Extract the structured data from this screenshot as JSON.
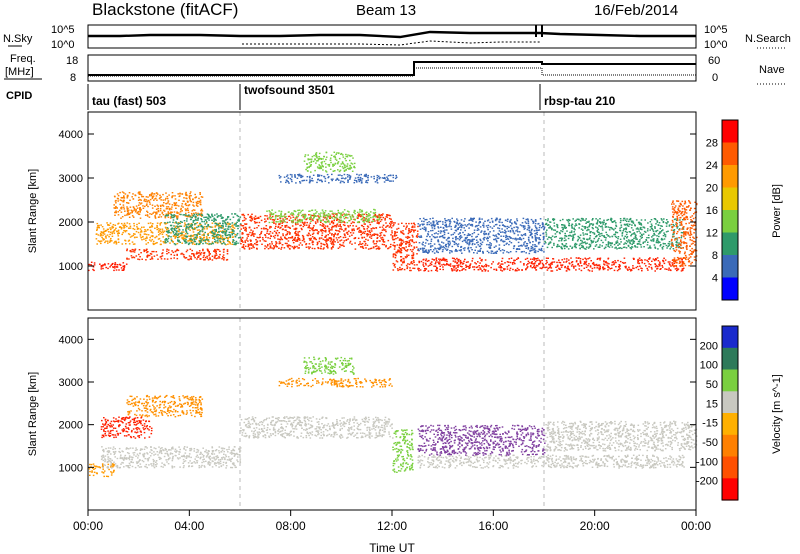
{
  "header": {
    "station": "Blackstone (fitACF)",
    "beam": "Beam 13",
    "date": "16/Feb/2014"
  },
  "left_labels": {
    "nsky": "N.Sky",
    "freq_line1": "Freq.",
    "freq_line2": "[MHz]",
    "cpid": "CPID"
  },
  "right_labels": {
    "nsearch": "N.Search",
    "nave": "Nave"
  },
  "noise_axis": {
    "top": "10^5",
    "bottom": "10^0"
  },
  "freq_axis": {
    "left_ticks": [
      "18",
      "8"
    ],
    "right_ticks": [
      "60",
      "0"
    ]
  },
  "cpid_segments": [
    {
      "label": "tau (fast) 503",
      "start_hour": 0
    },
    {
      "label": "twofsound 3501",
      "start_hour": 6
    },
    {
      "label": "rbsp-tau 210",
      "start_hour": 18
    }
  ],
  "chart_data": [
    {
      "type": "heatmap",
      "panel": "power",
      "ylabel": "Slant Range [km]",
      "xlabel": "Time UT",
      "xlim_hours": [
        0,
        24
      ],
      "x_ticks": [
        "00:00",
        "04:00",
        "08:00",
        "12:00",
        "16:00",
        "20:00",
        "00:00"
      ],
      "ylim": [
        0,
        4500
      ],
      "y_ticks": [
        1000,
        2000,
        3000,
        4000
      ],
      "colorbar": {
        "label": "Power [dB]",
        "ticks": [
          "28",
          "24",
          "20",
          "16",
          "12",
          "8",
          "4"
        ],
        "colors": [
          "#ff0000",
          "#ff5a00",
          "#ff9a00",
          "#e8c800",
          "#7ad040",
          "#2e9a6a",
          "#3a6ab8",
          "#0000ff"
        ]
      },
      "scatter_bands": [
        {
          "t0": 0.0,
          "t1": 1.5,
          "r0": 900,
          "r1": 1100,
          "color": "#ff1a00"
        },
        {
          "t0": 1.5,
          "t1": 5.5,
          "r0": 1150,
          "r1": 1400,
          "color": "#ff3000"
        },
        {
          "t0": 0.3,
          "t1": 5.8,
          "r0": 1500,
          "r1": 2000,
          "color": "#ff9a00"
        },
        {
          "t0": 1.0,
          "t1": 4.5,
          "r0": 2100,
          "r1": 2700,
          "color": "#ff8000"
        },
        {
          "t0": 3.0,
          "t1": 6.0,
          "r0": 1500,
          "r1": 2200,
          "color": "#2e9a6a"
        },
        {
          "t0": 6.0,
          "t1": 12.0,
          "r0": 1400,
          "r1": 2200,
          "color": "#ff3000"
        },
        {
          "t0": 7.0,
          "t1": 11.5,
          "r0": 2000,
          "r1": 2300,
          "color": "#7ad040"
        },
        {
          "t0": 7.5,
          "t1": 12.2,
          "r0": 2900,
          "r1": 3100,
          "color": "#3a6ab8"
        },
        {
          "t0": 8.5,
          "t1": 10.5,
          "r0": 3150,
          "r1": 3600,
          "color": "#7ad040"
        },
        {
          "t0": 12.0,
          "t1": 13.0,
          "r0": 900,
          "r1": 2000,
          "color": "#ff3000"
        },
        {
          "t0": 13.0,
          "t1": 23.5,
          "r0": 900,
          "r1": 1200,
          "color": "#ff2000"
        },
        {
          "t0": 13.0,
          "t1": 18.0,
          "r0": 1300,
          "r1": 2100,
          "color": "#3a6ab8"
        },
        {
          "t0": 18.0,
          "t1": 23.5,
          "r0": 1400,
          "r1": 2100,
          "color": "#2e9a6a"
        },
        {
          "t0": 23.0,
          "t1": 24.0,
          "r0": 1000,
          "r1": 2500,
          "color": "#ff5a00"
        }
      ]
    },
    {
      "type": "heatmap",
      "panel": "velocity",
      "ylabel": "Slant Range [km]",
      "xlabel": "Time UT",
      "xlim_hours": [
        0,
        24
      ],
      "x_ticks": [
        "00:00",
        "04:00",
        "08:00",
        "12:00",
        "16:00",
        "20:00",
        "00:00"
      ],
      "ylim": [
        0,
        4500
      ],
      "y_ticks": [
        1000,
        2000,
        3000,
        4000
      ],
      "colorbar": {
        "label": "Velocity [m s^-1]",
        "ticks": [
          "200",
          "100",
          "50",
          "15",
          "-15",
          "-50",
          "-100",
          "-200"
        ],
        "colors": [
          "#1a2acc",
          "#2e7a5a",
          "#7ad040",
          "#c8c8c0",
          "#ffb000",
          "#ff8000",
          "#ff5000",
          "#ff0000"
        ]
      },
      "scatter_bands": [
        {
          "t0": 0.0,
          "t1": 1.0,
          "r0": 800,
          "r1": 1100,
          "color": "#ff9a00"
        },
        {
          "t0": 0.5,
          "t1": 6.0,
          "r0": 1000,
          "r1": 1500,
          "color": "#c8c8c0"
        },
        {
          "t0": 0.5,
          "t1": 2.5,
          "r0": 1700,
          "r1": 2200,
          "color": "#ff2000"
        },
        {
          "t0": 1.5,
          "t1": 4.5,
          "r0": 2200,
          "r1": 2700,
          "color": "#ff9000"
        },
        {
          "t0": 6.0,
          "t1": 12.0,
          "r0": 1700,
          "r1": 2200,
          "color": "#c8c8c0"
        },
        {
          "t0": 7.5,
          "t1": 12.0,
          "r0": 2900,
          "r1": 3100,
          "color": "#ff9000"
        },
        {
          "t0": 8.5,
          "t1": 10.5,
          "r0": 3200,
          "r1": 3600,
          "color": "#7ad040"
        },
        {
          "t0": 12.0,
          "t1": 12.8,
          "r0": 900,
          "r1": 1900,
          "color": "#7ad040"
        },
        {
          "t0": 13.0,
          "t1": 23.5,
          "r0": 1000,
          "r1": 1300,
          "color": "#c8c8c0"
        },
        {
          "t0": 13.0,
          "t1": 18.0,
          "r0": 1300,
          "r1": 2000,
          "color": "#8040a0"
        },
        {
          "t0": 18.0,
          "t1": 24.0,
          "r0": 1400,
          "r1": 2100,
          "color": "#c8c8c0"
        }
      ]
    }
  ]
}
